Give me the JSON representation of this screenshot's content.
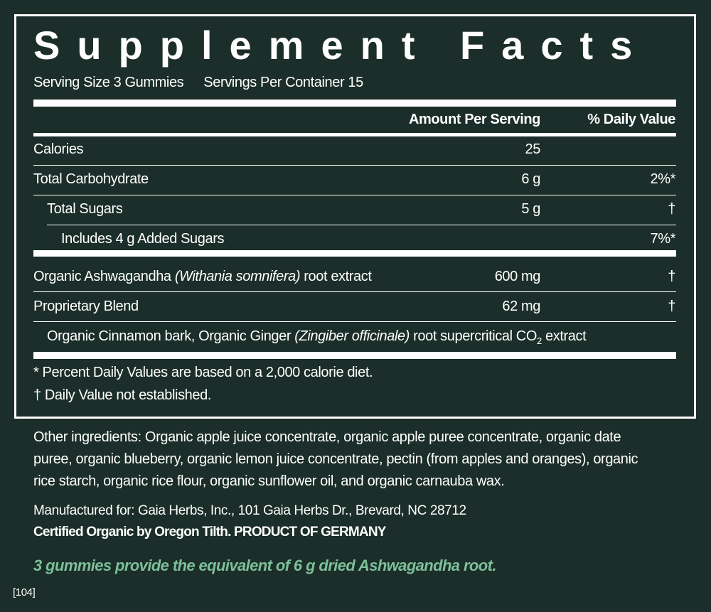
{
  "title": "Supplement Facts",
  "serving_size": "Serving Size 3 Gummies",
  "servings_per_container": "Servings Per Container 15",
  "header": {
    "amount": "Amount Per Serving",
    "dv": "% Daily Value"
  },
  "rows": [
    {
      "name": "Calories",
      "amount": "25",
      "dv": ""
    },
    {
      "name": "Total Carbohydrate",
      "amount": "6 g",
      "dv": "2%*"
    },
    {
      "name": "Total Sugars",
      "amount": "5 g",
      "dv": "†"
    },
    {
      "name": "Includes 4 g Added Sugars",
      "amount": "",
      "dv": "7%*"
    },
    {
      "name_pre": "Organic Ashwagandha ",
      "name_italic": "(Withania somnifera)",
      "name_post": " root extract",
      "amount": "600 mg",
      "dv": "†"
    },
    {
      "name": "Proprietary Blend",
      "amount": "62 mg",
      "dv": "†"
    }
  ],
  "blend": {
    "pre": "Organic Cinnamon bark, Organic Ginger ",
    "italic": "(Zingiber officinale)",
    "post": " root supercritical CO",
    "sub": "2",
    "end": " extract"
  },
  "footnotes": [
    "* Percent Daily Values are based on a 2,000 calorie diet.",
    "† Daily Value not established."
  ],
  "other_ingredients": [
    "Other ingredients: Organic apple juice concentrate, organic apple puree concentrate, organic date",
    "puree, organic blueberry, organic lemon juice concentrate, pectin (from apples and oranges), organic",
    "rice starch, organic rice flour, organic sunflower oil, and organic carnauba wax."
  ],
  "manufacturer": "Manufactured for: Gaia Herbs, Inc., 101 Gaia Herbs Dr., Brevard, NC 28712",
  "certification": "Certified Organic by Oregon Tilth. PRODUCT OF GERMANY",
  "equivalence": "3 gummies provide the equivalent of 6 g dried Ashwagandha root.",
  "code": "[104]",
  "colors": {
    "background": "#1b2e29",
    "accent": "#7dbf9a",
    "text": "#ffffff"
  }
}
